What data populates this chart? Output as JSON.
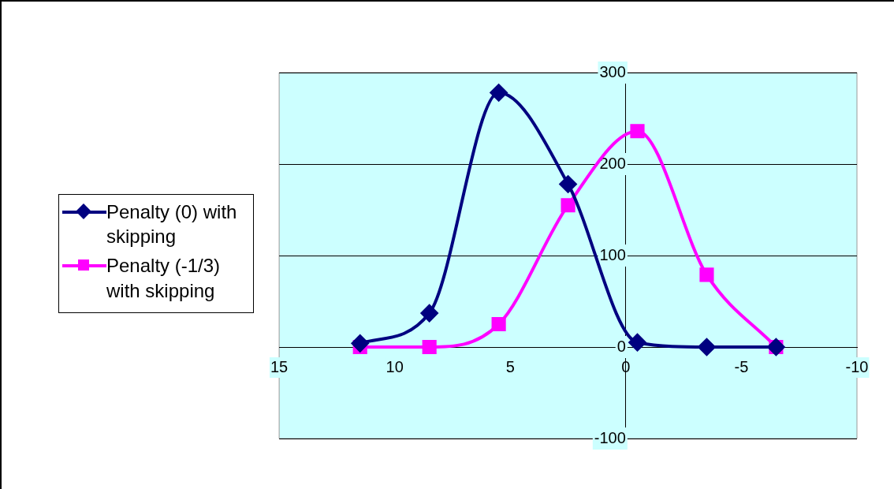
{
  "chart_data": {
    "type": "line",
    "x": [
      11.5,
      8.5,
      5.5,
      2.5,
      -0.5,
      -3.5,
      -6.5
    ],
    "series": [
      {
        "name": "Penalty (0) with skipping",
        "color": "#000080",
        "marker": "diamond",
        "values": [
          4,
          37,
          278,
          178,
          5,
          0,
          0
        ]
      },
      {
        "name": "Penalty (-1/3) with skipping",
        "color": "#ff00ff",
        "marker": "square",
        "values": [
          0,
          0,
          25,
          155,
          236,
          79,
          0
        ]
      }
    ],
    "xlim": [
      15,
      -10
    ],
    "xticks": [
      15,
      10,
      5,
      0,
      -5,
      -10
    ],
    "ylim": [
      -100,
      300
    ],
    "yticks": [
      -100,
      0,
      100,
      200,
      300
    ],
    "grid": "y",
    "legend": "left"
  }
}
